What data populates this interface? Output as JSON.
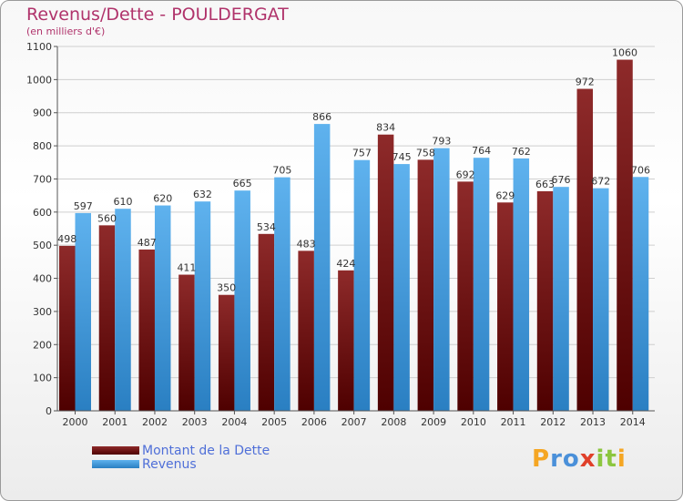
{
  "chart_data": {
    "type": "bar",
    "title": "Revenus/Dette - POULDERGAT",
    "subtitle": "(en milliers d'€)",
    "categories": [
      "2000",
      "2001",
      "2002",
      "2003",
      "2004",
      "2005",
      "2006",
      "2007",
      "2008",
      "2009",
      "2010",
      "2011",
      "2012",
      "2013",
      "2014"
    ],
    "series": [
      {
        "name": "Montant de la Dette",
        "color": "#7a1818",
        "values": [
          498,
          560,
          487,
          411,
          350,
          534,
          483,
          424,
          834,
          758,
          692,
          629,
          663,
          972,
          1060
        ]
      },
      {
        "name": "Revenus",
        "color": "#4a9fe0",
        "values": [
          597,
          610,
          620,
          632,
          665,
          705,
          866,
          757,
          745,
          793,
          764,
          762,
          676,
          672,
          706
        ]
      }
    ],
    "yticks": [
      0,
      100,
      200,
      300,
      400,
      500,
      600,
      700,
      800,
      900,
      1000,
      1100
    ],
    "ylim": [
      0,
      1100
    ],
    "grid": true,
    "legend": "bottom-left"
  },
  "logo": {
    "letters": [
      {
        "ch": "P",
        "color": "#f5a623"
      },
      {
        "ch": "r",
        "color": "#4a90d9"
      },
      {
        "ch": "o",
        "color": "#4a90d9"
      },
      {
        "ch": "x",
        "color": "#e0402a"
      },
      {
        "ch": "i",
        "color": "#8cc63f"
      },
      {
        "ch": "t",
        "color": "#8cc63f"
      },
      {
        "ch": "i",
        "color": "#f5a623"
      }
    ]
  }
}
